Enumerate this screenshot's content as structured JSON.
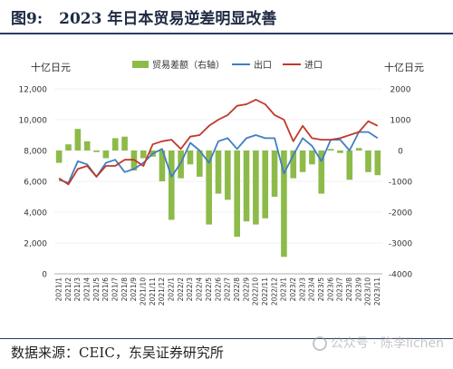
{
  "figure": {
    "number": "图9:",
    "title": "2023 年日本贸易逆差明显改善"
  },
  "footer": {
    "source": "数据来源：CEIC，东吴证券研究所"
  },
  "watermark": {
    "text": "公众号 · 陈李lichen"
  },
  "chart_data": {
    "type": "bar+line",
    "left_axis_unit": "十亿日元",
    "right_axis_unit": "十亿日元",
    "left_ylim": [
      0,
      12000
    ],
    "left_ticks": [
      "0",
      "2,000",
      "4,000",
      "6,000",
      "8,000",
      "10,000",
      "12,000"
    ],
    "right_ylim": [
      -4000,
      2000
    ],
    "right_ticks": [
      "-4000",
      "-3000",
      "-2000",
      "-1000",
      "0",
      "1000",
      "2000"
    ],
    "legend": [
      "贸易差额（右轴）",
      "出口",
      "进口"
    ],
    "colors": {
      "balance": "#8dbb4a",
      "exports": "#3f7fc0",
      "imports": "#c0392b"
    },
    "categories": [
      "2021/1",
      "2021/2",
      "2021/3",
      "2021/4",
      "2021/5",
      "2021/6",
      "2021/7",
      "2021/8",
      "2021/9",
      "2021/10",
      "2021/11",
      "2021/12",
      "2022/1",
      "2022/2",
      "2022/3",
      "2022/4",
      "2022/5",
      "2022/6",
      "2022/7",
      "2022/8",
      "2022/9",
      "2022/10",
      "2022/11",
      "2022/12",
      "2023/1",
      "2023/2",
      "2023/3",
      "2023/4",
      "2023/5",
      "2023/6",
      "2023/7",
      "2023/8",
      "2023/9",
      "2023/10",
      "2023/11"
    ],
    "series": [
      {
        "name": "贸易差额（右轴）",
        "type": "bar",
        "axis": "right",
        "values": [
          -400,
          200,
          700,
          300,
          -50,
          -250,
          400,
          450,
          -650,
          -250,
          -200,
          -1000,
          -2250,
          -900,
          -450,
          -850,
          -2400,
          -1400,
          -1600,
          -2800,
          -2300,
          -2400,
          -2200,
          -1500,
          -3450,
          -900,
          -700,
          -450,
          -1400,
          50,
          -80,
          -950,
          80,
          -700,
          -800
        ]
      },
      {
        "name": "出口",
        "type": "line",
        "axis": "left",
        "values": [
          6100,
          5900,
          7300,
          7100,
          6300,
          7200,
          7400,
          6600,
          6800,
          7200,
          7800,
          8100,
          6300,
          7200,
          8500,
          8000,
          7200,
          8600,
          8800,
          8100,
          8800,
          9000,
          8800,
          8800,
          6500,
          7700,
          8800,
          8300,
          7300,
          8700,
          8700,
          8000,
          9200,
          9200,
          8800
        ]
      },
      {
        "name": "进口",
        "type": "line",
        "axis": "left",
        "values": [
          6200,
          5800,
          6800,
          7000,
          6300,
          7000,
          7000,
          7400,
          7400,
          7000,
          8400,
          8600,
          8700,
          8100,
          8900,
          9000,
          9600,
          10000,
          10300,
          10900,
          11000,
          11300,
          11000,
          10300,
          10000,
          8600,
          9600,
          8800,
          8700,
          8700,
          8800,
          9000,
          9200,
          9900,
          9600
        ]
      }
    ]
  }
}
